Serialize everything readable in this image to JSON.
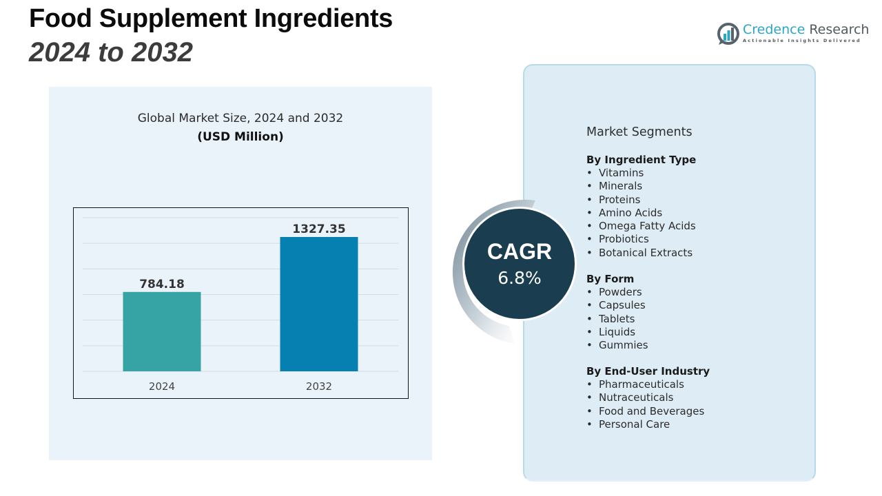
{
  "header": {
    "title": "Food Supplement Ingredients",
    "subtitle": "2024 to 2032"
  },
  "logo": {
    "name_part1": "Credence",
    "name_part2": " Research",
    "tagline": "Actionable Insights Delivered",
    "icon": "bar-chart-in-circle-icon"
  },
  "chart_data": {
    "type": "bar",
    "title": "Global Market Size, 2024 and 2032",
    "unit_label": "(USD Million)",
    "categories": [
      "2024",
      "2032"
    ],
    "values": [
      784.18,
      1327.35
    ],
    "value_labels": [
      "784.18",
      "1327.35"
    ],
    "colors": [
      "#36a3a5",
      "#0680b0"
    ],
    "xlabel": "",
    "ylabel": "",
    "ylim": [
      0,
      1400
    ],
    "grid": true,
    "legend": "none"
  },
  "cagr": {
    "label": "CAGR",
    "value": "6.8%"
  },
  "segments": {
    "title": "Market Segments",
    "groups": [
      {
        "heading": "By Ingredient Type",
        "items": [
          "Vitamins",
          "Minerals",
          "Proteins",
          "Amino Acids",
          "Omega Fatty Acids",
          "Probiotics",
          "Botanical Extracts"
        ]
      },
      {
        "heading": "By Form",
        "items": [
          "Powders",
          "Capsules",
          "Tablets",
          "Liquids",
          "Gummies"
        ]
      },
      {
        "heading": "By End-User Industry",
        "items": [
          "Pharmaceuticals",
          "Nutraceuticals",
          "Food and Beverages",
          "Personal Care"
        ]
      }
    ],
    "bullet": "•"
  }
}
